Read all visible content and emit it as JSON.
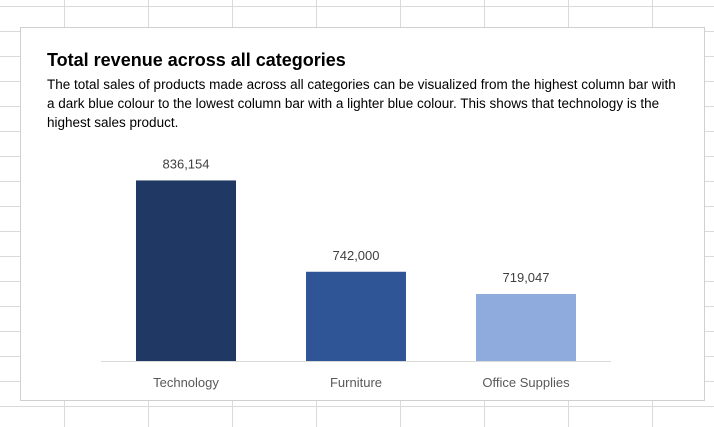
{
  "chart_data": {
    "type": "bar",
    "title": "Total revenue across all categories",
    "subtitle": "The total sales of products made across all categories can be visualized from the highest column bar with a dark blue colour to the lowest column bar with a lighter blue colour. This  shows that technology is the highest sales product.",
    "categories": [
      "Technology",
      "Furniture",
      "Office Supplies"
    ],
    "values": [
      836154,
      742000,
      719047
    ],
    "data_labels": [
      "836,154",
      "742,000",
      "719,047"
    ],
    "bar_colors": [
      "#203864",
      "#2f5597",
      "#8faadc"
    ],
    "ylim": [
      650000,
      850000
    ],
    "grid": false,
    "legend": "none",
    "xlabel": "",
    "ylabel": ""
  }
}
